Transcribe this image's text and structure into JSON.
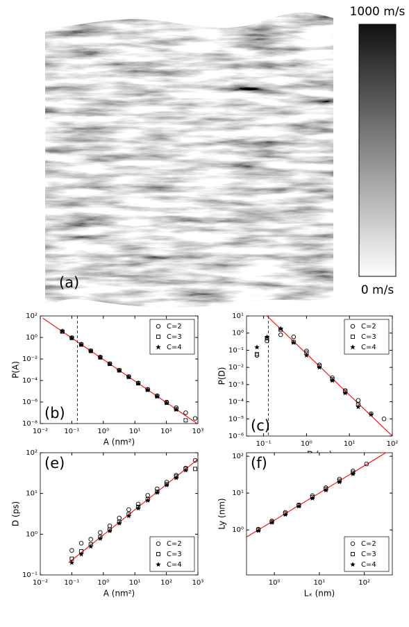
{
  "chart_data": [
    {
      "type": "image",
      "panel_label": "(a)",
      "colorbar": {
        "lim": [
          0,
          1000
        ],
        "ticks": [
          {
            "value": 1000,
            "label": "1000 m/s"
          },
          {
            "value": 0,
            "label": "0 m/s"
          }
        ]
      }
    },
    {
      "type": "scatter",
      "panel_label": "(b)",
      "x_label": "A (nm²)",
      "y_label": "P(A)",
      "xscale": "log",
      "yscale": "log",
      "xlim": [
        0.01,
        1000
      ],
      "ylim": [
        1e-08,
        100
      ],
      "xticks": [
        {
          "value": 0.01,
          "label": "10⁻²"
        },
        {
          "value": 0.1,
          "label": "10⁻¹"
        },
        {
          "value": 1,
          "label": "10⁰"
        },
        {
          "value": 10,
          "label": "10¹"
        },
        {
          "value": 100,
          "label": "10²"
        },
        {
          "value": 1000,
          "label": "10³"
        }
      ],
      "yticks": [
        {
          "value": 1e-08,
          "label": "10⁻⁸"
        },
        {
          "value": 1e-06,
          "label": "10⁻⁶"
        },
        {
          "value": 0.0001,
          "label": "10⁻⁴"
        },
        {
          "value": 0.01,
          "label": "10⁻²"
        },
        {
          "value": 1,
          "label": "10⁰"
        },
        {
          "value": 100,
          "label": "10²"
        }
      ],
      "legend": "upper right",
      "threshold": 0.15,
      "x": [
        0.05,
        0.1,
        0.2,
        0.4,
        0.8,
        1.6,
        3.2,
        6.4,
        12.8,
        25.6,
        51,
        102,
        205,
        410,
        820
      ],
      "series": [
        {
          "name": "C=2",
          "marker": "circle",
          "color": "#000000",
          "values": [
            3.6,
            0.95,
            0.23,
            0.058,
            0.015,
            0.0036,
            0.0009,
            0.00023,
            5.8e-05,
            1.5e-05,
            3.8e-06,
            1e-06,
            3e-07,
            1e-07,
            3e-08
          ]
        },
        {
          "name": "C=3",
          "marker": "square",
          "color": "#000000",
          "values": [
            3.5,
            0.9,
            0.22,
            0.056,
            0.014,
            0.0035,
            0.00088,
            0.00022,
            5.5e-05,
            1.4e-05,
            3.5e-06,
            8.7e-07,
            2.2e-07,
            2e-08,
            null
          ]
        },
        {
          "name": "C=4",
          "marker": "star",
          "color": "#000000",
          "values": [
            3.8,
            0.88,
            0.21,
            0.055,
            0.014,
            0.0034,
            0.00086,
            0.00021,
            5.3e-05,
            1.3e-05,
            3.3e-06,
            8.2e-07,
            2e-07,
            null,
            null
          ]
        }
      ],
      "fit": {
        "color": "#ff0000",
        "x": [
          0.012,
          1000
        ],
        "y": [
          62,
          9e-09
        ]
      }
    },
    {
      "type": "scatter",
      "panel_label": "(c)",
      "x_label": "D (ps)",
      "y_label": "P(D)",
      "xscale": "log",
      "yscale": "log",
      "xlim": [
        0.04,
        100
      ],
      "ylim": [
        1e-06,
        10
      ],
      "xticks": [
        {
          "value": 0.1,
          "label": "10⁻¹"
        },
        {
          "value": 1,
          "label": "10⁰"
        },
        {
          "value": 10,
          "label": "10¹"
        },
        {
          "value": 100,
          "label": "10²"
        }
      ],
      "yticks": [
        {
          "value": 1e-06,
          "label": "10⁻⁶"
        },
        {
          "value": 1e-05,
          "label": "10⁻⁵"
        },
        {
          "value": 0.0001,
          "label": "10⁻⁴"
        },
        {
          "value": 0.001,
          "label": "10⁻³"
        },
        {
          "value": 0.01,
          "label": "10⁻²"
        },
        {
          "value": 0.1,
          "label": "10⁻¹"
        },
        {
          "value": 1,
          "label": "10⁰"
        },
        {
          "value": 10,
          "label": "10¹"
        }
      ],
      "legend": "upper right",
      "threshold": 0.13,
      "x": [
        0.07,
        0.12,
        0.25,
        0.5,
        1,
        2,
        4,
        8,
        16,
        32,
        64
      ],
      "series": [
        {
          "name": "C=2",
          "marker": "circle",
          "color": "#000000",
          "values": [
            0.05,
            0.35,
            0.8,
            0.6,
            0.09,
            0.014,
            0.0025,
            0.00045,
            0.00012,
            2e-05,
            1e-05
          ]
        },
        {
          "name": "C=3",
          "marker": "square",
          "color": "#000000",
          "values": [
            0.06,
            0.5,
            1.6,
            0.3,
            0.07,
            0.012,
            0.002,
            0.00038,
            7e-05,
            null,
            null
          ]
        },
        {
          "name": "C=4",
          "marker": "star",
          "color": "#000000",
          "values": [
            0.15,
            0.6,
            1.8,
            0.28,
            0.05,
            0.01,
            0.0017,
            0.00032,
            5e-05,
            1.8e-05,
            null
          ]
        }
      ],
      "fit": {
        "color": "#ff0000",
        "x": [
          0.12,
          100
        ],
        "y": [
          10,
          1e-06
        ]
      }
    },
    {
      "type": "scatter",
      "panel_label": "(e)",
      "x_label": "A (nm²)",
      "y_label": "D (ps)",
      "xscale": "log",
      "yscale": "log",
      "xlim": [
        0.01,
        1000
      ],
      "ylim": [
        0.1,
        100
      ],
      "xticks": [
        {
          "value": 0.01,
          "label": "10⁻²"
        },
        {
          "value": 0.1,
          "label": "10⁻¹"
        },
        {
          "value": 1,
          "label": "10⁰"
        },
        {
          "value": 10,
          "label": "10¹"
        },
        {
          "value": 100,
          "label": "10²"
        },
        {
          "value": 1000,
          "label": "10³"
        }
      ],
      "yticks": [
        {
          "value": 0.1,
          "label": "10⁻¹"
        },
        {
          "value": 1,
          "label": "10⁰"
        },
        {
          "value": 10,
          "label": "10¹"
        },
        {
          "value": 100,
          "label": "10²"
        }
      ],
      "legend": "lower right",
      "x": [
        0.1,
        0.2,
        0.4,
        0.8,
        1.6,
        3.2,
        6.4,
        12.8,
        25.6,
        51,
        102,
        205,
        410,
        820
      ],
      "series": [
        {
          "name": "C=2",
          "marker": "circle",
          "color": "#000000",
          "values": [
            0.4,
            0.6,
            0.75,
            1.1,
            1.6,
            2.5,
            4,
            5.5,
            9,
            13,
            19,
            28,
            42,
            65
          ]
        },
        {
          "name": "C=3",
          "marker": "square",
          "color": "#000000",
          "values": [
            0.25,
            0.38,
            0.56,
            0.85,
            1.3,
            2,
            3.1,
            4.7,
            7.2,
            11,
            17,
            26,
            40,
            40
          ]
        },
        {
          "name": "C=4",
          "marker": "star",
          "color": "#000000",
          "values": [
            0.2,
            0.32,
            0.5,
            0.78,
            1.2,
            1.85,
            2.8,
            4.3,
            6.7,
            10.5,
            16,
            24,
            37,
            null
          ]
        }
      ],
      "fit": {
        "color": "#ff0000",
        "x": [
          0.08,
          1000
        ],
        "y": [
          0.2,
          69
        ]
      }
    },
    {
      "type": "scatter",
      "panel_label": "(f)",
      "x_label": "Lₓ (nm)",
      "y_label": "Ly (nm)",
      "xscale": "log",
      "yscale": "log",
      "xlim": [
        0.24,
        420
      ],
      "ylim": [
        0.06,
        125
      ],
      "xticks": [
        {
          "value": 1,
          "label": "10⁰"
        },
        {
          "value": 10,
          "label": "10¹"
        },
        {
          "value": 100,
          "label": "10²"
        }
      ],
      "yticks": [
        {
          "value": 1,
          "label": "10⁰"
        },
        {
          "value": 10,
          "label": "10¹"
        },
        {
          "value": 100,
          "label": "10²"
        }
      ],
      "legend": "lower right",
      "x": [
        0.44,
        0.88,
        1.75,
        3.5,
        7,
        14,
        28,
        56,
        112
      ],
      "series": [
        {
          "name": "C=2",
          "marker": "circle",
          "color": "#000000",
          "values": [
            1.05,
            1.75,
            3,
            4.8,
            8.5,
            14,
            24,
            40,
            62
          ]
        },
        {
          "name": "C=3",
          "marker": "square",
          "color": "#000000",
          "values": [
            1,
            1.65,
            2.8,
            4.6,
            7.8,
            12.9,
            21.6,
            36,
            null
          ]
        },
        {
          "name": "C=4",
          "marker": "star",
          "color": "#000000",
          "values": [
            0.95,
            1.6,
            2.6,
            4.4,
            7.2,
            12,
            20,
            33,
            null
          ]
        }
      ],
      "fit": {
        "color": "#ff0000",
        "x": [
          0.24,
          420
        ],
        "y": [
          0.64,
          160
        ]
      }
    }
  ]
}
